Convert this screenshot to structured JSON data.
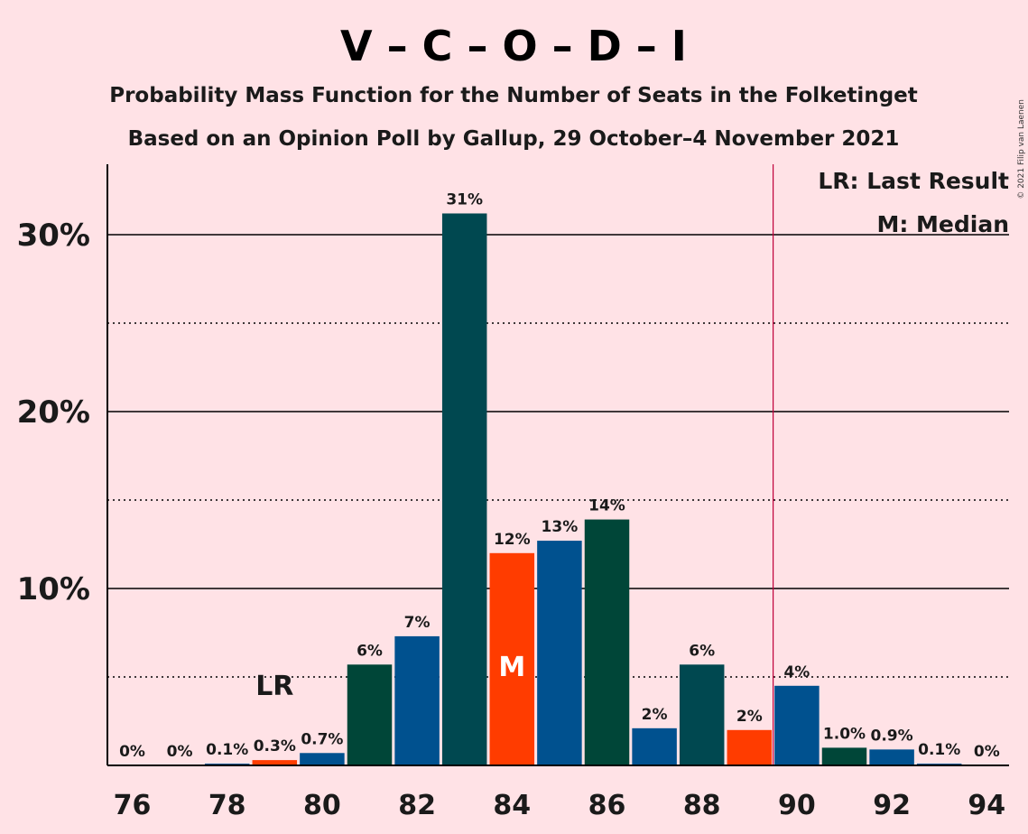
{
  "chart_data": {
    "type": "bar",
    "title": "V – C – O – D – I",
    "subtitle1": "Probability Mass Function for the Number of Seats in the Folketinget",
    "subtitle2": "Based on an Opinion Poll by Gallup, 29 October–4 November 2021",
    "copyright": "© 2021 Filip van Laenen",
    "x": [
      76,
      77,
      78,
      79,
      80,
      81,
      82,
      83,
      84,
      85,
      86,
      87,
      88,
      89,
      90,
      91,
      92,
      93,
      94
    ],
    "values": [
      0,
      0,
      0.1,
      0.3,
      0.7,
      5.7,
      7.3,
      31.2,
      12.0,
      12.7,
      13.9,
      2.1,
      5.7,
      2.0,
      4.5,
      1.0,
      0.9,
      0.1,
      0
    ],
    "data_labels": [
      "0%",
      "0%",
      "0.1%",
      "0.3%",
      "0.7%",
      "6%",
      "7%",
      "31%",
      "12%",
      "13%",
      "14%",
      "2%",
      "6%",
      "2%",
      "4%",
      "1.0%",
      "0.9%",
      "0.1%",
      "0%"
    ],
    "bar_colors": [
      "#e6f0ff",
      "#e6f0ff",
      "#00518f",
      "#ff3c00",
      "#00518f",
      "#004638",
      "#00518f",
      "#004850",
      "#ff3c00",
      "#00518f",
      "#004638",
      "#00518f",
      "#004850",
      "#ff3c00",
      "#00518f",
      "#004638",
      "#00518f",
      "#00518f",
      "#00518f"
    ],
    "x_tick_labels": [
      "76",
      "78",
      "80",
      "82",
      "84",
      "86",
      "88",
      "90",
      "92",
      "94"
    ],
    "x_tick_values": [
      76,
      78,
      80,
      82,
      84,
      86,
      88,
      90,
      92,
      94
    ],
    "y_tick_labels": [
      "10%",
      "20%",
      "30%"
    ],
    "y_tick_values": [
      10,
      20,
      30
    ],
    "y_dotted_values": [
      5,
      15,
      25
    ],
    "ylim": [
      0,
      34
    ],
    "last_result_seat": 79,
    "last_result_label": "LR",
    "median_seat": 84,
    "median_label": "M",
    "majority_line_x": 89.5,
    "majority_line_color": "#c0003a",
    "legend": [
      "LR: Last Result",
      "M: Median"
    ],
    "legend_position": "top-right"
  }
}
